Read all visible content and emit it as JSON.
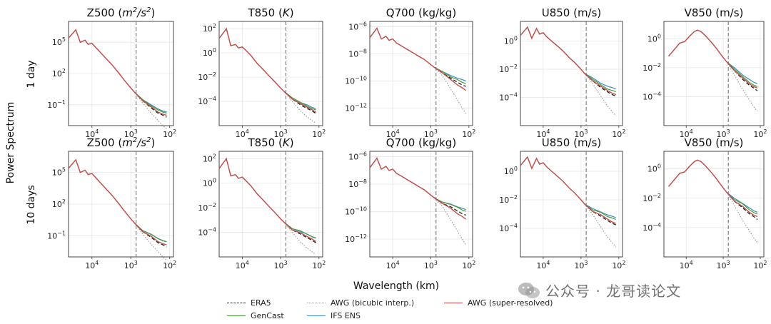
{
  "figure": {
    "ylabel": "Power Spectrum",
    "xlabel": "Wavelength (km)",
    "rows": [
      "1 day",
      "10 days"
    ]
  },
  "legend": [
    {
      "label": "ERA5",
      "color": "#222222",
      "style": "dashed"
    },
    {
      "label": "GenCast",
      "color": "#4c9a3c",
      "style": "solid"
    },
    {
      "label": "AWG (bicubic interp.)",
      "color": "#999999",
      "style": "dotted"
    },
    {
      "label": "IFS ENS",
      "color": "#3f8fc0",
      "style": "solid"
    },
    {
      "label": "AWG (super-resolved)",
      "color": "#c0504d",
      "style": "solid"
    }
  ],
  "watermark": {
    "text": "公众号 · 龙哥读论文",
    "icon": "wechat-icon"
  },
  "chart_data": [
    {
      "type": "line",
      "title_plain": "Z500 (",
      "title_math": "m",
      "title_sup": "2",
      "title_math2": "/s",
      "title_sup2": "2",
      "title_end": ")",
      "title": "Z500 (m^2/s^2)",
      "xscale": "log",
      "xlim": [
        40000,
        80
      ],
      "x_reversed": true,
      "xticks": [
        {
          "label": "10",
          "sup": "4",
          "value": 10000
        },
        {
          "label": "10",
          "sup": "3",
          "value": 1000
        },
        {
          "label": "10",
          "sup": "2",
          "value": 100
        }
      ],
      "yscale": "log",
      "ylim_exp": [
        -3,
        7
      ],
      "yticks": [
        {
          "label": "10",
          "sup": "5",
          "exp": 5
        },
        {
          "label": "10",
          "sup": "2",
          "exp": 2
        },
        {
          "label": "10",
          "sup": "−1",
          "exp": -1
        }
      ],
      "vline_km": 730,
      "series_common_x": [
        40000,
        26000,
        20000,
        15000,
        12500,
        10000,
        8000,
        6000,
        4000,
        3000,
        2000,
        1500,
        1000,
        800
      ],
      "series_common_log10y": [
        5.4,
        6.2,
        5.0,
        5.2,
        4.8,
        4.9,
        4.5,
        4.0,
        3.3,
        2.8,
        2.0,
        1.4,
        0.6,
        0.2
      ],
      "tails_x": [
        800,
        500,
        300,
        200,
        150,
        120
      ],
      "tails": {
        "ERA5": [
          0.2,
          -0.6,
          -1.3,
          -1.8,
          -2.0,
          -2.2
        ],
        "GenCast": [
          0.2,
          -0.5,
          -1.1,
          -1.5,
          -1.7,
          -1.8
        ],
        "AWG (bicubic interp.)": [
          0.2,
          -0.8,
          -1.8,
          -2.5,
          -3.0,
          -3.3
        ],
        "IFS ENS": [
          0.2,
          -0.5,
          -1.0,
          -1.4,
          -1.6,
          -1.7
        ],
        "AWG (super-resolved)": [
          0.2,
          -0.6,
          -1.2,
          -1.7,
          -1.9,
          -2.0
        ]
      }
    },
    {
      "type": "line",
      "title": "T850 (K)",
      "title_plain": "T850 (",
      "title_math": "K",
      "title_end": ")",
      "xscale": "log",
      "xlim": [
        40000,
        80
      ],
      "x_reversed": true,
      "xticks": [
        {
          "label": "10",
          "sup": "4",
          "value": 10000
        },
        {
          "label": "10",
          "sup": "3",
          "value": 1000
        },
        {
          "label": "10",
          "sup": "2",
          "value": 100
        }
      ],
      "yscale": "log",
      "ylim_exp": [
        -6,
        2.6
      ],
      "yticks": [
        {
          "label": "10",
          "sup": "2",
          "exp": 2
        },
        {
          "label": "10",
          "sup": "0",
          "exp": 0
        },
        {
          "label": "10",
          "sup": "−2",
          "exp": -2
        },
        {
          "label": "10",
          "sup": "−4",
          "exp": -4
        }
      ],
      "vline_km": 730,
      "series_common_x": [
        40000,
        26000,
        20000,
        15000,
        12500,
        10000,
        8000,
        6000,
        4000,
        3000,
        2000,
        1500,
        1000,
        800
      ],
      "series_common_log10y": [
        1.2,
        2.0,
        0.6,
        0.7,
        0.4,
        0.5,
        0.2,
        -0.2,
        -0.9,
        -1.3,
        -1.9,
        -2.3,
        -2.9,
        -3.2
      ],
      "tails_x": [
        800,
        500,
        300,
        200,
        150,
        120
      ],
      "tails": {
        "ERA5": [
          -3.2,
          -3.8,
          -4.3,
          -4.6,
          -4.8,
          -5.0
        ],
        "GenCast": [
          -3.2,
          -3.7,
          -4.1,
          -4.4,
          -4.6,
          -4.7
        ],
        "AWG (bicubic interp.)": [
          -3.2,
          -4.0,
          -4.8,
          -5.3,
          -5.6,
          -5.8
        ],
        "IFS ENS": [
          -3.2,
          -3.7,
          -4.1,
          -4.3,
          -4.5,
          -4.6
        ],
        "AWG (super-resolved)": [
          -3.2,
          -3.8,
          -4.2,
          -4.5,
          -4.7,
          -4.9
        ]
      }
    },
    {
      "type": "line",
      "title": "Q700 (kg/kg)",
      "title_plain": "Q700 (kg/kg)",
      "xscale": "log",
      "xlim": [
        40000,
        80
      ],
      "x_reversed": true,
      "xticks": [
        {
          "label": "10",
          "sup": "4",
          "value": 10000
        },
        {
          "label": "10",
          "sup": "3",
          "value": 1000
        },
        {
          "label": "10",
          "sup": "2",
          "value": 100
        }
      ],
      "yscale": "log",
      "ylim_exp": [
        -13.3,
        -5.6
      ],
      "yticks": [
        {
          "label": "10",
          "sup": "−6",
          "exp": -6
        },
        {
          "label": "10",
          "sup": "−8",
          "exp": -8
        },
        {
          "label": "10",
          "sup": "−10",
          "exp": -10
        },
        {
          "label": "10",
          "sup": "−12",
          "exp": -12
        }
      ],
      "vline_km": 730,
      "series_common_x": [
        40000,
        26000,
        20000,
        15000,
        12500,
        10000,
        8000,
        6000,
        4000,
        3000,
        2000,
        1500,
        1000,
        800
      ],
      "series_common_log10y": [
        -6.8,
        -6.1,
        -6.9,
        -6.7,
        -7.0,
        -6.9,
        -7.2,
        -7.4,
        -7.7,
        -7.9,
        -8.2,
        -8.4,
        -8.8,
        -9.0
      ],
      "tails_x": [
        800,
        500,
        300,
        200,
        150,
        120
      ],
      "tails": {
        "ERA5": [
          -9.0,
          -9.4,
          -9.8,
          -10.1,
          -10.3,
          -10.4
        ],
        "GenCast": [
          -9.0,
          -9.3,
          -9.7,
          -9.9,
          -10.1,
          -10.2
        ],
        "AWG (bicubic interp.)": [
          -9.0,
          -9.6,
          -10.6,
          -11.4,
          -12.0,
          -12.4
        ],
        "IFS ENS": [
          -9.0,
          -9.3,
          -9.6,
          -9.8,
          -9.9,
          -10.0
        ],
        "AWG (super-resolved)": [
          -9.0,
          -9.4,
          -9.9,
          -10.3,
          -10.5,
          -10.7
        ]
      }
    },
    {
      "type": "line",
      "title": "U850 (m/s)",
      "title_plain": "U850 (m/s)",
      "xscale": "log",
      "xlim": [
        40000,
        80
      ],
      "x_reversed": true,
      "xticks": [
        {
          "label": "10",
          "sup": "4",
          "value": 10000
        },
        {
          "label": "10",
          "sup": "3",
          "value": 1000
        },
        {
          "label": "10",
          "sup": "2",
          "value": 100
        }
      ],
      "yscale": "log",
      "ylim_exp": [
        -6,
        1.4
      ],
      "yticks": [
        {
          "label": "10",
          "sup": "0",
          "exp": 0
        },
        {
          "label": "10",
          "sup": "−2",
          "exp": -2
        },
        {
          "label": "10",
          "sup": "−4",
          "exp": -4
        }
      ],
      "vline_km": 730,
      "series_common_x": [
        40000,
        26000,
        20000,
        15000,
        12500,
        10000,
        8000,
        6000,
        4000,
        3000,
        2000,
        1500,
        1000,
        800
      ],
      "series_common_log10y": [
        0.4,
        1.0,
        0.2,
        0.9,
        0.5,
        0.6,
        0.3,
        0.0,
        -0.4,
        -0.7,
        -1.2,
        -1.5,
        -2.0,
        -2.3
      ],
      "tails_x": [
        800,
        500,
        300,
        200,
        150,
        120
      ],
      "tails": {
        "ERA5": [
          -2.3,
          -2.8,
          -3.3,
          -3.6,
          -3.8,
          -3.9
        ],
        "GenCast": [
          -2.3,
          -2.7,
          -3.1,
          -3.4,
          -3.5,
          -3.6
        ],
        "AWG (bicubic interp.)": [
          -2.3,
          -3.0,
          -3.9,
          -4.6,
          -5.0,
          -5.3
        ],
        "IFS ENS": [
          -2.3,
          -2.6,
          -3.0,
          -3.2,
          -3.3,
          -3.4
        ],
        "AWG (super-resolved)": [
          -2.3,
          -2.8,
          -3.2,
          -3.5,
          -3.7,
          -3.8
        ]
      }
    },
    {
      "type": "line",
      "title": "V850 (m/s)",
      "title_plain": "V850 (m/s)",
      "xscale": "log",
      "xlim": [
        40000,
        80
      ],
      "x_reversed": true,
      "xticks": [
        {
          "label": "10",
          "sup": "4",
          "value": 10000
        },
        {
          "label": "10",
          "sup": "3",
          "value": 1000
        },
        {
          "label": "10",
          "sup": "2",
          "value": 100
        }
      ],
      "yscale": "log",
      "ylim_exp": [
        -6,
        1.2
      ],
      "yticks": [
        {
          "label": "10",
          "sup": "0",
          "exp": 0
        },
        {
          "label": "10",
          "sup": "−2",
          "exp": -2
        },
        {
          "label": "10",
          "sup": "−4",
          "exp": -4
        }
      ],
      "vline_km": 730,
      "series_common_x": [
        30000,
        22000,
        15000,
        11000,
        8000,
        6000,
        5000,
        4000,
        3000,
        2000,
        1500,
        1000,
        800
      ],
      "series_common_log10y": [
        -1.2,
        -0.8,
        -0.3,
        -0.2,
        0.2,
        0.5,
        0.6,
        0.5,
        0.2,
        -0.3,
        -0.7,
        -1.3,
        -1.6
      ],
      "tails_x": [
        800,
        500,
        300,
        200,
        150,
        120
      ],
      "tails": {
        "ERA5": [
          -1.6,
          -2.2,
          -2.8,
          -3.2,
          -3.4,
          -3.6
        ],
        "GenCast": [
          -1.6,
          -2.1,
          -2.6,
          -3.0,
          -3.2,
          -3.3
        ],
        "AWG (bicubic interp.)": [
          -1.6,
          -2.5,
          -3.5,
          -4.2,
          -4.7,
          -5.0
        ],
        "IFS ENS": [
          -1.6,
          -2.0,
          -2.5,
          -2.8,
          -3.0,
          -3.1
        ],
        "AWG (super-resolved)": [
          -1.6,
          -2.2,
          -2.7,
          -3.1,
          -3.3,
          -3.4
        ]
      }
    }
  ]
}
